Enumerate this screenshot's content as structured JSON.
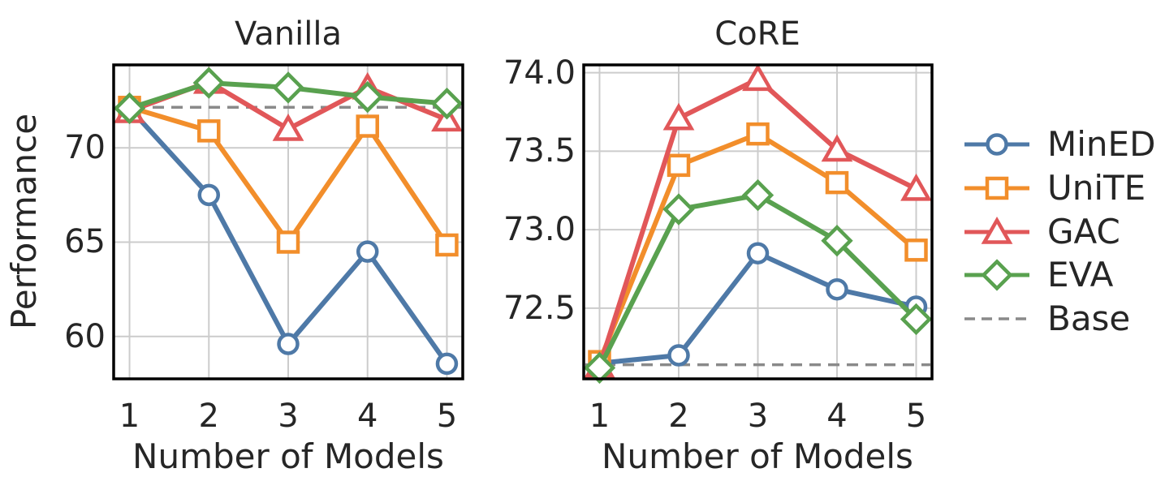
{
  "figure": {
    "ylabel": "Performance",
    "background": "#ffffff",
    "text_color": "#262626",
    "grid_color": "#cccccc",
    "spine_color": "#000000",
    "baseline_color": "#8a8a8a"
  },
  "legend": {
    "items": [
      {
        "label": "MinED",
        "marker": "circle",
        "color": "#4E79A7"
      },
      {
        "label": "UniTE",
        "marker": "square",
        "color": "#F28E2B"
      },
      {
        "label": "GAC",
        "marker": "triangle",
        "color": "#E15759"
      },
      {
        "label": "EVA",
        "marker": "diamond",
        "color": "#59A14F"
      },
      {
        "label": "Base",
        "marker": "dashed-line",
        "color": "#8a8a8a"
      }
    ]
  },
  "chart_data": [
    {
      "type": "line",
      "title": "Vanilla",
      "xlabel": "Number of Models",
      "ylabel": "Performance",
      "x": [
        1,
        2,
        3,
        4,
        5
      ],
      "xtick_labels": [
        "1",
        "2",
        "3",
        "4",
        "5"
      ],
      "yticks": [
        60,
        65,
        70
      ],
      "ytick_labels": [
        "60",
        "65",
        "70"
      ],
      "xlim": [
        0.8,
        5.2
      ],
      "ylim": [
        57.75,
        74.4
      ],
      "grid": true,
      "legend_position": "outside-right",
      "baseline": {
        "name": "Base",
        "value": 72.15
      },
      "series": [
        {
          "name": "MinED",
          "marker": "circle",
          "color": "#4E79A7",
          "values": [
            72.1,
            67.5,
            59.6,
            64.5,
            58.55
          ]
        },
        {
          "name": "UniTE",
          "marker": "square",
          "color": "#F28E2B",
          "values": [
            72.15,
            70.9,
            65.0,
            71.15,
            64.85
          ]
        },
        {
          "name": "GAC",
          "marker": "triangle",
          "color": "#E15759",
          "values": [
            71.95,
            73.5,
            71.0,
            73.2,
            71.5
          ]
        },
        {
          "name": "EVA",
          "marker": "diamond",
          "color": "#59A14F",
          "values": [
            72.1,
            73.45,
            73.2,
            72.7,
            72.35
          ]
        }
      ]
    },
    {
      "type": "line",
      "title": "CoRE",
      "xlabel": "Number of Models",
      "ylabel": "",
      "x": [
        1,
        2,
        3,
        4,
        5
      ],
      "xtick_labels": [
        "1",
        "2",
        "3",
        "4",
        "5"
      ],
      "yticks": [
        72.5,
        73.0,
        73.5,
        74.0
      ],
      "ytick_labels": [
        "72.5",
        "73.0",
        "73.5",
        "74.0"
      ],
      "xlim": [
        0.8,
        5.2
      ],
      "ylim": [
        72.05,
        74.05
      ],
      "grid": true,
      "legend_position": "outside-right",
      "baseline": {
        "name": "Base",
        "value": 72.14
      },
      "series": [
        {
          "name": "MinED",
          "marker": "circle",
          "color": "#4E79A7",
          "values": [
            72.15,
            72.2,
            72.85,
            72.62,
            72.51
          ]
        },
        {
          "name": "UniTE",
          "marker": "square",
          "color": "#F28E2B",
          "values": [
            72.16,
            73.41,
            73.61,
            73.3,
            72.87
          ]
        },
        {
          "name": "GAC",
          "marker": "triangle",
          "color": "#E15759",
          "values": [
            72.13,
            73.71,
            73.96,
            73.51,
            73.26
          ]
        },
        {
          "name": "EVA",
          "marker": "diamond",
          "color": "#59A14F",
          "values": [
            72.12,
            73.13,
            73.22,
            72.93,
            72.43
          ]
        }
      ]
    }
  ]
}
